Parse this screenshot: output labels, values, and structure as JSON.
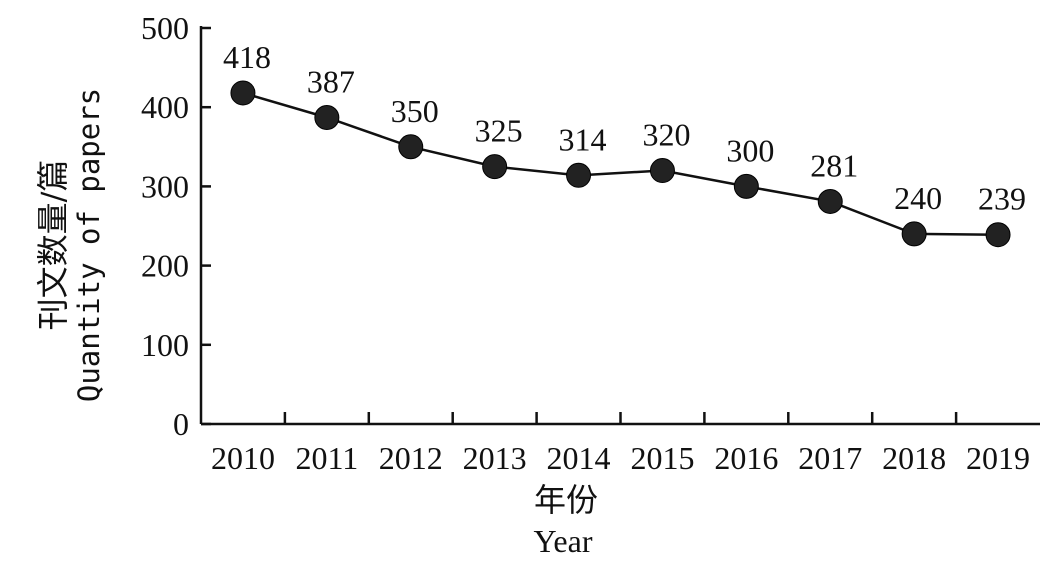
{
  "chart_data": {
    "type": "line",
    "x": [
      "2010",
      "2011",
      "2012",
      "2013",
      "2014",
      "2015",
      "2016",
      "2017",
      "2018",
      "2019"
    ],
    "series": [
      {
        "values": [
          418,
          387,
          350,
          325,
          314,
          320,
          300,
          281,
          240,
          239
        ]
      }
    ],
    "data_labels": [
      "418",
      "387",
      "350",
      "325",
      "314",
      "320",
      "300",
      "281",
      "240",
      "239"
    ],
    "xlabel_cn": "年份",
    "xlabel_en": "Year",
    "ylabel_cn": "刊文数量/篇",
    "ylabel_en": "Quantity of papers",
    "ylim": [
      0,
      500
    ],
    "yticks": [
      "0",
      "100",
      "200",
      "300",
      "400",
      "500"
    ],
    "grid": false,
    "colors": {
      "line": "#111111",
      "marker": "#222222",
      "axis": "#111111"
    }
  }
}
